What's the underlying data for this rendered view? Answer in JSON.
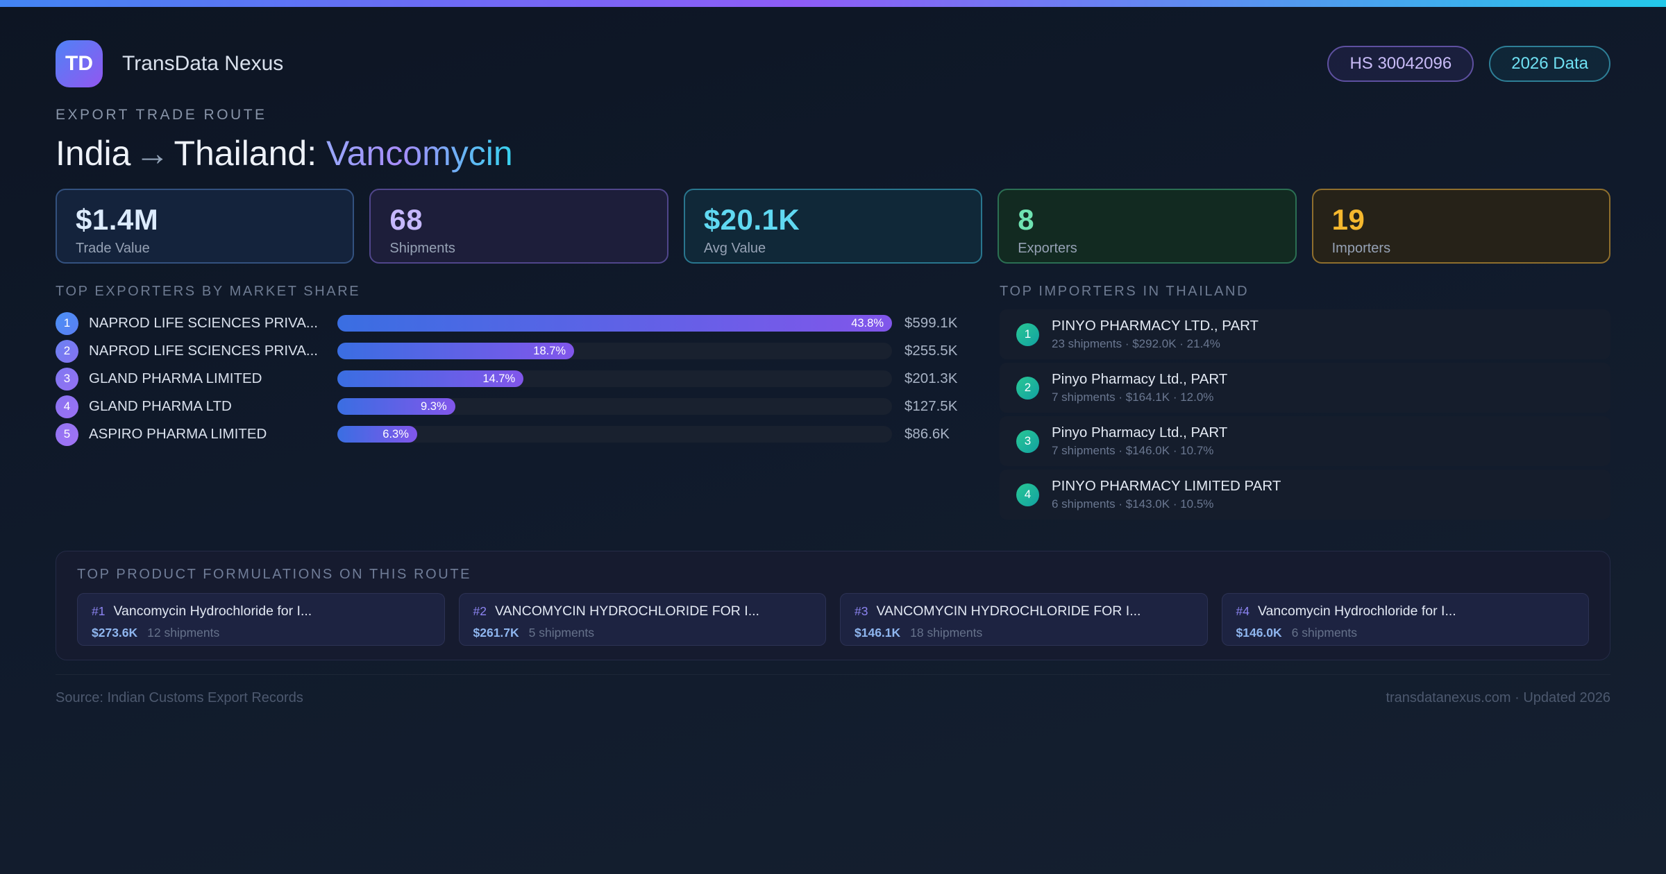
{
  "palette": {
    "background": "#101a2b",
    "accent_blue": "#3b82f6",
    "accent_purple": "#8b5cf6",
    "accent_cyan": "#22d3ee",
    "accent_green": "#2bc992",
    "accent_amber": "#f5b82e"
  },
  "header": {
    "logo_text": "TD",
    "app_name": "TransData Nexus",
    "hs_badge": "HS 30042096",
    "year_badge": "2026 Data"
  },
  "hero": {
    "eyebrow": "EXPORT TRADE ROUTE",
    "title_origin": "India",
    "title_arrow": "→",
    "title_dest": "Thailand:",
    "title_product": "Vancomycin"
  },
  "stats": [
    {
      "value": "$1.4M",
      "label": "Trade Value"
    },
    {
      "value": "68",
      "label": "Shipments"
    },
    {
      "value": "$20.1K",
      "label": "Avg Value"
    },
    {
      "value": "8",
      "label": "Exporters"
    },
    {
      "value": "19",
      "label": "Importers"
    }
  ],
  "exporters": {
    "section_title": "TOP EXPORTERS BY MARKET SHARE",
    "rows": [
      {
        "rank": "1",
        "name": "NAPROD LIFE SCIENCES PRIVA...",
        "share_pct": 43.8,
        "share_label": "43.8%",
        "value": "$599.1K"
      },
      {
        "rank": "2",
        "name": "NAPROD LIFE SCIENCES PRIVA...",
        "share_pct": 18.7,
        "share_label": "18.7%",
        "value": "$255.5K"
      },
      {
        "rank": "3",
        "name": "GLAND PHARMA LIMITED",
        "share_pct": 14.7,
        "share_label": "14.7%",
        "value": "$201.3K"
      },
      {
        "rank": "4",
        "name": "GLAND PHARMA LTD",
        "share_pct": 9.3,
        "share_label": "9.3%",
        "value": "$127.5K"
      },
      {
        "rank": "5",
        "name": "ASPIRO PHARMA LIMITED",
        "share_pct": 6.3,
        "share_label": "6.3%",
        "value": "$86.6K"
      }
    ]
  },
  "importers": {
    "section_title": "TOP IMPORTERS IN THAILAND",
    "rows": [
      {
        "rank": "1",
        "name": "PINYO PHARMACY LTD., PART",
        "meta": "23 shipments · $292.0K · 21.4%"
      },
      {
        "rank": "2",
        "name": "Pinyo Pharmacy Ltd., PART",
        "meta": "7 shipments · $164.1K · 12.0%"
      },
      {
        "rank": "3",
        "name": "Pinyo Pharmacy Ltd., PART",
        "meta": "7 shipments · $146.0K · 10.7%"
      },
      {
        "rank": "4",
        "name": "PINYO PHARMACY LIMITED PART",
        "meta": "6 shipments · $143.0K · 10.5%"
      }
    ]
  },
  "products": {
    "section_title": "TOP PRODUCT FORMULATIONS ON THIS ROUTE",
    "cards": [
      {
        "rank_label": "#1",
        "name": "Vancomycin Hydrochloride for I...",
        "value": "$273.6K",
        "shipments": "12 shipments"
      },
      {
        "rank_label": "#2",
        "name": "VANCOMYCIN HYDROCHLORIDE FOR I...",
        "value": "$261.7K",
        "shipments": "5 shipments"
      },
      {
        "rank_label": "#3",
        "name": "VANCOMYCIN HYDROCHLORIDE FOR I...",
        "value": "$146.1K",
        "shipments": "18 shipments"
      },
      {
        "rank_label": "#4",
        "name": "Vancomycin Hydrochloride for I...",
        "value": "$146.0K",
        "shipments": "6 shipments"
      }
    ]
  },
  "footer": {
    "source": "Source: Indian Customs Export Records",
    "site": "transdatanexus.com · Updated 2026"
  },
  "chart_data": {
    "type": "bar",
    "orientation": "horizontal",
    "title": "Top Exporters by Market Share",
    "categories": [
      "NAPROD LIFE SCIENCES PRIVA...",
      "NAPROD LIFE SCIENCES PRIVA...",
      "GLAND PHARMA LIMITED",
      "GLAND PHARMA LTD",
      "ASPIRO PHARMA LIMITED"
    ],
    "values": [
      43.8,
      18.7,
      14.7,
      9.3,
      6.3
    ],
    "value_labels": [
      "$599.1K",
      "$255.5K",
      "$201.3K",
      "$127.5K",
      "$86.6K"
    ],
    "ylabel": "market share %",
    "xlim": [
      0,
      43.8
    ],
    "grid": false,
    "legend": false
  }
}
